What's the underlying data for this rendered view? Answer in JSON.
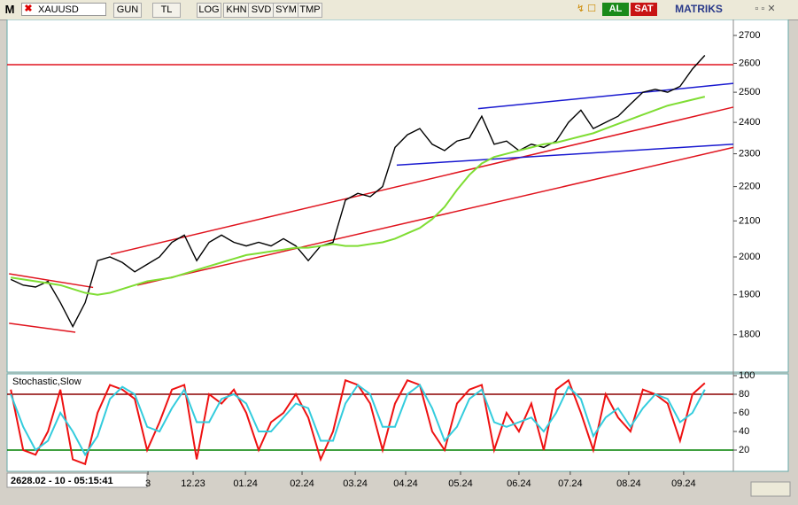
{
  "toolbar": {
    "logo": "M",
    "symbol": "XAUUSD",
    "buttons": [
      "GUN",
      "TL",
      "LOG",
      "KHN",
      "SVD",
      "SYM",
      "TMP"
    ],
    "buy": "AL",
    "sell": "SAT",
    "brand": "MATRIKS"
  },
  "status": "2628.02 - 10 - 05:15:41",
  "chart_data": [
    {
      "type": "line",
      "log": true,
      "xlim": [
        -0.3,
        58.3
      ],
      "ylim": [
        1711,
        2759
      ],
      "yticks": [
        1800,
        1900,
        2000,
        2100,
        2200,
        2300,
        2400,
        2500,
        2600,
        2700
      ],
      "series": [
        {
          "color": "#000000",
          "values": [
            1940,
            1925,
            1920,
            1935,
            1880,
            1820,
            1880,
            1990,
            2000,
            1985,
            1960,
            1980,
            2000,
            2040,
            2060,
            1990,
            2040,
            2060,
            2040,
            2030,
            2040,
            2030,
            2050,
            2030,
            1990,
            2030,
            2040,
            2160,
            2180,
            2170,
            2200,
            2320,
            2360,
            2380,
            2330,
            2310,
            2340,
            2350,
            2420,
            2330,
            2340,
            2310,
            2330,
            2320,
            2340,
            2400,
            2440,
            2380,
            2400,
            2420,
            2460,
            2500,
            2510,
            2500,
            2520,
            2580,
            2628
          ]
        },
        {
          "color": "#7fdd33",
          "values": [
            1945,
            1940,
            1935,
            1930,
            1925,
            1915,
            1905,
            1900,
            1905,
            1915,
            1925,
            1935,
            1940,
            1945,
            1955,
            1965,
            1975,
            1985,
            1995,
            2005,
            2010,
            2015,
            2020,
            2025,
            2025,
            2030,
            2035,
            2030,
            2030,
            2035,
            2040,
            2050,
            2065,
            2080,
            2105,
            2140,
            2190,
            2235,
            2270,
            2290,
            2300,
            2310,
            2320,
            2330,
            2335,
            2345,
            2355,
            2365,
            2380,
            2395,
            2410,
            2425,
            2440,
            2455,
            2465,
            2475,
            2485
          ]
        }
      ],
      "lines": [
        {
          "color": "#e0141e",
          "x": [
            -0.3,
            58.3
          ],
          "values": [
            2595,
            2595
          ]
        },
        {
          "color": "#e0141e",
          "x": [
            -0.14,
            5.21
          ],
          "values": [
            1828,
            1806
          ]
        },
        {
          "color": "#e0141e",
          "x": [
            -0.14,
            6.64
          ],
          "values": [
            1955,
            1919
          ]
        },
        {
          "color": "#e0141e",
          "x": [
            8.07,
            58.3
          ],
          "values": [
            2007,
            2450
          ]
        },
        {
          "color": "#e0141e",
          "x": [
            10.21,
            58.3
          ],
          "values": [
            1925,
            2320
          ]
        },
        {
          "color": "#1a1ad0",
          "x": [
            37.71,
            58.3
          ],
          "values": [
            2445,
            2530
          ]
        },
        {
          "color": "#1a1ad0",
          "x": [
            31.14,
            58.3
          ],
          "values": [
            2265,
            2330
          ]
        }
      ]
    },
    {
      "type": "line",
      "title": "Stochastic,Slow",
      "xlim": [
        -0.3,
        58.3
      ],
      "ylim": [
        0,
        100
      ],
      "yticks": [
        20,
        40,
        60,
        80,
        100
      ],
      "xticks": [
        {
          "value": 11.07,
          "label": "3"
        },
        {
          "value": 14.71,
          "label": "12.23"
        },
        {
          "value": 18.93,
          "label": "01.24"
        },
        {
          "value": 23.5,
          "label": "02.24"
        },
        {
          "value": 27.79,
          "label": "03.24"
        },
        {
          "value": 31.86,
          "label": "04.24"
        },
        {
          "value": 36.29,
          "label": "05.24"
        },
        {
          "value": 41.0,
          "label": "06.24"
        },
        {
          "value": 45.14,
          "label": "07.24"
        },
        {
          "value": 49.86,
          "label": "08.24"
        },
        {
          "value": 54.29,
          "label": "09.24"
        }
      ],
      "levels": [
        {
          "value": 80,
          "color": "#8b0000"
        },
        {
          "value": 20,
          "color": "#008000"
        }
      ],
      "series": [
        {
          "color": "#ee1111",
          "values": [
            85,
            20,
            15,
            40,
            85,
            10,
            5,
            60,
            90,
            85,
            75,
            20,
            50,
            85,
            90,
            10,
            80,
            70,
            85,
            60,
            20,
            50,
            60,
            80,
            55,
            10,
            40,
            95,
            90,
            70,
            20,
            70,
            95,
            90,
            40,
            20,
            70,
            85,
            90,
            20,
            60,
            40,
            70,
            20,
            85,
            95,
            60,
            20,
            80,
            55,
            40,
            85,
            80,
            70,
            30,
            80,
            92
          ]
        },
        {
          "color": "#33ccdd",
          "values": [
            80,
            45,
            20,
            30,
            60,
            40,
            15,
            35,
            75,
            88,
            80,
            45,
            40,
            65,
            85,
            50,
            50,
            75,
            80,
            70,
            40,
            40,
            55,
            70,
            65,
            30,
            30,
            70,
            90,
            80,
            45,
            45,
            80,
            90,
            65,
            30,
            45,
            75,
            85,
            50,
            45,
            50,
            55,
            40,
            60,
            88,
            75,
            35,
            55,
            65,
            45,
            65,
            80,
            75,
            50,
            60,
            85
          ]
        }
      ]
    }
  ]
}
